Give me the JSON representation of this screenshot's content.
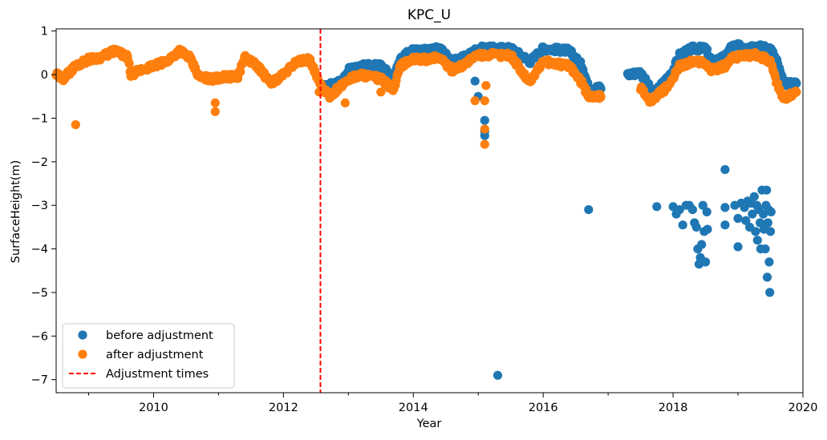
{
  "chart_data": {
    "type": "scatter",
    "title": "KPC_U",
    "xlabel": "Year",
    "ylabel": "SurfaceHeight(m)",
    "xlim": [
      2008.5,
      2020.0
    ],
    "ylim": [
      -7.3,
      1.05
    ],
    "x_ticks": [
      2010,
      2012,
      2014,
      2016,
      2018,
      2020
    ],
    "x_tick_labels": [
      "2010",
      "2012",
      "2014",
      "2016",
      "2018",
      "2020"
    ],
    "y_ticks": [
      1,
      0,
      -1,
      -2,
      -3,
      -4,
      -5,
      -6,
      -7
    ],
    "y_tick_labels": [
      "1",
      "0",
      "−1",
      "−2",
      "−3",
      "−4",
      "−5",
      "−6",
      "−7"
    ],
    "legend_position": "lower-left",
    "grid": false,
    "series": [
      {
        "name": "before adjustment",
        "color": "#1f77b4",
        "profile": [
          [
            2012.6,
            -0.3
          ],
          [
            2012.9,
            -0.15
          ],
          [
            2013.0,
            0.1
          ],
          [
            2013.2,
            0.2
          ],
          [
            2013.5,
            0.2
          ],
          [
            2013.7,
            -0.1
          ],
          [
            2013.8,
            0.4
          ],
          [
            2014.0,
            0.55
          ],
          [
            2014.2,
            0.55
          ],
          [
            2014.4,
            0.6
          ],
          [
            2014.6,
            0.3
          ],
          [
            2014.8,
            0.4
          ],
          [
            2015.0,
            0.6
          ],
          [
            2015.5,
            0.6
          ],
          [
            2015.8,
            0.3
          ],
          [
            2016.0,
            0.6
          ],
          [
            2016.4,
            0.55
          ],
          [
            2016.6,
            0.2
          ],
          [
            2016.7,
            -0.3
          ],
          [
            2016.9,
            -0.3
          ],
          [
            2016.9,
            null
          ],
          [
            2017.3,
            null
          ],
          [
            2017.3,
            0.0
          ],
          [
            2017.5,
            0.05
          ],
          [
            2017.6,
            -0.2
          ],
          [
            2017.7,
            -0.45
          ],
          [
            2017.9,
            -0.1
          ],
          [
            2018.0,
            0.1
          ],
          [
            2018.1,
            0.45
          ],
          [
            2018.3,
            0.6
          ],
          [
            2018.5,
            0.6
          ],
          [
            2018.6,
            0.3
          ],
          [
            2018.8,
            0.4
          ],
          [
            2018.9,
            0.65
          ],
          [
            2019.3,
            0.65
          ],
          [
            2019.5,
            0.6
          ],
          [
            2019.6,
            0.3
          ],
          [
            2019.7,
            -0.2
          ],
          [
            2019.9,
            -0.2
          ]
        ],
        "outliers": [
          [
            2015.3,
            -6.9
          ],
          [
            2016.7,
            -3.1
          ],
          [
            2017.75,
            -3.03
          ],
          [
            2018.8,
            -2.18
          ],
          [
            2015.1,
            -1.05
          ],
          [
            2015.1,
            -1.4
          ],
          [
            2015.1,
            -1.3
          ],
          [
            2015.0,
            -0.5
          ],
          [
            2014.95,
            -0.15
          ],
          [
            2018.0,
            -3.03
          ],
          [
            2018.05,
            -3.2
          ],
          [
            2018.1,
            -3.1
          ],
          [
            2018.15,
            -3.45
          ],
          [
            2018.2,
            -3.0
          ],
          [
            2018.25,
            -3.0
          ],
          [
            2018.3,
            -3.1
          ],
          [
            2018.33,
            -3.4
          ],
          [
            2018.36,
            -3.5
          ],
          [
            2018.38,
            -4.0
          ],
          [
            2018.4,
            -4.35
          ],
          [
            2018.42,
            -4.2
          ],
          [
            2018.44,
            -3.9
          ],
          [
            2018.46,
            -3.0
          ],
          [
            2018.48,
            -3.6
          ],
          [
            2018.5,
            -4.3
          ],
          [
            2018.52,
            -3.15
          ],
          [
            2018.53,
            -3.55
          ],
          [
            2018.8,
            -3.05
          ],
          [
            2018.8,
            -3.45
          ],
          [
            2018.95,
            -3.0
          ],
          [
            2019.0,
            -3.3
          ],
          [
            2019.0,
            -3.95
          ],
          [
            2019.05,
            -2.95
          ],
          [
            2019.1,
            -3.05
          ],
          [
            2019.12,
            -3.35
          ],
          [
            2019.15,
            -2.9
          ],
          [
            2019.18,
            -3.5
          ],
          [
            2019.2,
            -2.95
          ],
          [
            2019.22,
            -3.2
          ],
          [
            2019.25,
            -2.8
          ],
          [
            2019.27,
            -3.6
          ],
          [
            2019.29,
            -3.0
          ],
          [
            2019.3,
            -3.8
          ],
          [
            2019.32,
            -3.1
          ],
          [
            2019.34,
            -3.4
          ],
          [
            2019.35,
            -4.0
          ],
          [
            2019.37,
            -2.65
          ],
          [
            2019.39,
            -3.2
          ],
          [
            2019.4,
            -3.55
          ],
          [
            2019.42,
            -4.0
          ],
          [
            2019.43,
            -3.0
          ],
          [
            2019.44,
            -2.65
          ],
          [
            2019.45,
            -4.65
          ],
          [
            2019.46,
            -3.4
          ],
          [
            2019.47,
            -3.1
          ],
          [
            2019.48,
            -4.3
          ],
          [
            2019.49,
            -5.0
          ],
          [
            2019.5,
            -3.6
          ],
          [
            2019.51,
            -3.15
          ]
        ]
      },
      {
        "name": "after adjustment",
        "color": "#ff7f0e",
        "profile": [
          [
            2008.5,
            0.0
          ],
          [
            2008.6,
            -0.1
          ],
          [
            2008.8,
            0.2
          ],
          [
            2009.0,
            0.35
          ],
          [
            2009.2,
            0.4
          ],
          [
            2009.4,
            0.55
          ],
          [
            2009.6,
            0.4
          ],
          [
            2009.65,
            0.0
          ],
          [
            2009.8,
            0.1
          ],
          [
            2010.0,
            0.2
          ],
          [
            2010.2,
            0.3
          ],
          [
            2010.4,
            0.55
          ],
          [
            2010.55,
            0.4
          ],
          [
            2010.7,
            -0.05
          ],
          [
            2010.9,
            -0.1
          ],
          [
            2011.1,
            -0.05
          ],
          [
            2011.3,
            -0.05
          ],
          [
            2011.4,
            0.4
          ],
          [
            2011.6,
            0.2
          ],
          [
            2011.8,
            -0.2
          ],
          [
            2012.0,
            0.0
          ],
          [
            2012.2,
            0.3
          ],
          [
            2012.4,
            0.35
          ],
          [
            2012.55,
            -0.2
          ],
          [
            2012.7,
            -0.5
          ],
          [
            2012.9,
            -0.25
          ],
          [
            2013.0,
            -0.1
          ],
          [
            2013.2,
            0.0
          ],
          [
            2013.5,
            -0.1
          ],
          [
            2013.7,
            -0.35
          ],
          [
            2013.8,
            0.2
          ],
          [
            2014.0,
            0.35
          ],
          [
            2014.2,
            0.35
          ],
          [
            2014.4,
            0.4
          ],
          [
            2014.6,
            0.1
          ],
          [
            2014.8,
            0.25
          ],
          [
            2015.0,
            0.45
          ],
          [
            2015.5,
            0.45
          ],
          [
            2015.7,
            0.0
          ],
          [
            2015.8,
            -0.15
          ],
          [
            2016.0,
            0.3
          ],
          [
            2016.4,
            0.2
          ],
          [
            2016.6,
            -0.2
          ],
          [
            2016.7,
            -0.5
          ],
          [
            2016.9,
            -0.5
          ],
          [
            2016.9,
            null
          ],
          [
            2017.5,
            null
          ],
          [
            2017.5,
            -0.3
          ],
          [
            2017.65,
            -0.6
          ],
          [
            2017.9,
            -0.3
          ],
          [
            2018.0,
            -0.1
          ],
          [
            2018.1,
            0.2
          ],
          [
            2018.3,
            0.3
          ],
          [
            2018.5,
            0.25
          ],
          [
            2018.6,
            0.1
          ],
          [
            2018.8,
            0.2
          ],
          [
            2018.9,
            0.4
          ],
          [
            2019.3,
            0.45
          ],
          [
            2019.5,
            0.3
          ],
          [
            2019.6,
            -0.2
          ],
          [
            2019.7,
            -0.55
          ],
          [
            2019.9,
            -0.4
          ]
        ],
        "outliers": [
          [
            2008.8,
            -1.15
          ],
          [
            2010.95,
            -0.65
          ],
          [
            2010.95,
            -0.85
          ],
          [
            2012.55,
            -0.4
          ],
          [
            2012.95,
            -0.65
          ],
          [
            2013.5,
            -0.4
          ],
          [
            2014.95,
            -0.6
          ],
          [
            2015.1,
            -0.6
          ],
          [
            2015.1,
            -1.25
          ],
          [
            2015.1,
            -1.6
          ],
          [
            2015.12,
            -0.25
          ]
        ]
      },
      {
        "name": "Adjustment times",
        "color": "#ff0000",
        "line_style": "dashed",
        "x_positions": [
          2012.57
        ]
      }
    ]
  }
}
